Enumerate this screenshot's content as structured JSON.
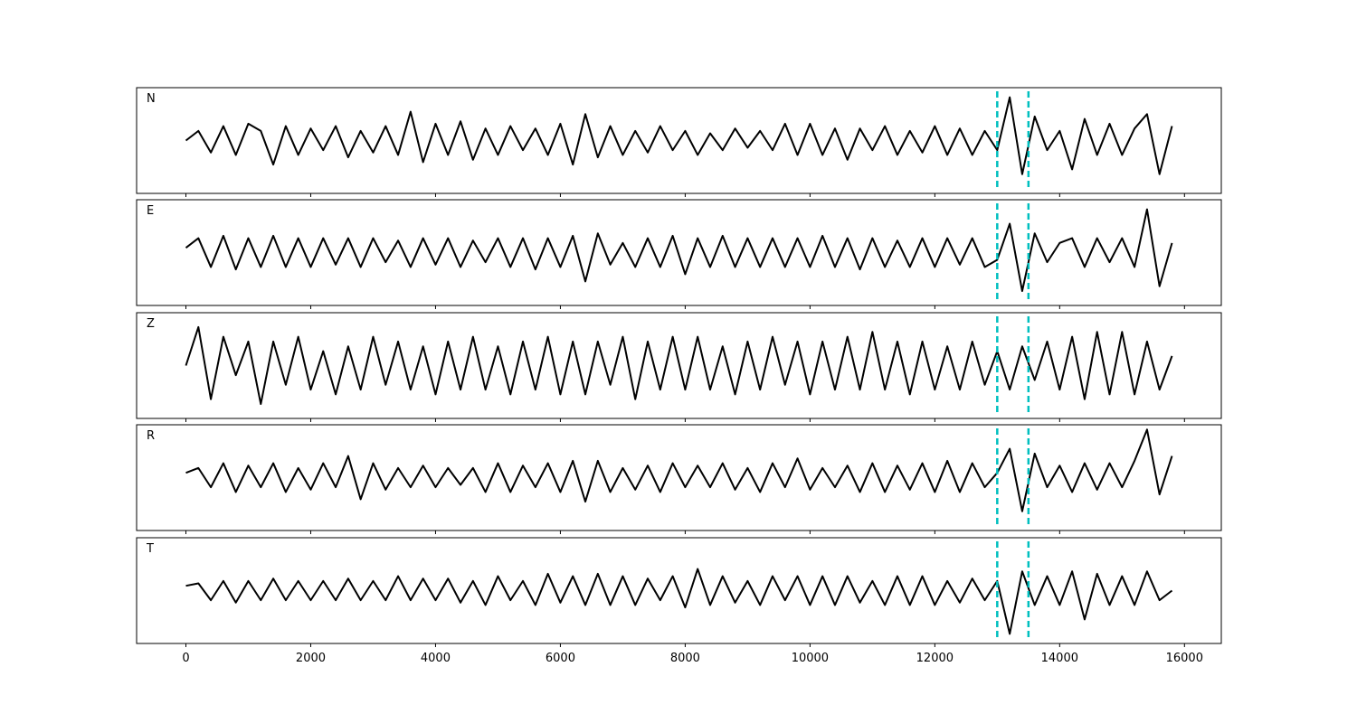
{
  "chart_data": [
    {
      "type": "line",
      "title": "N",
      "color": "#000000",
      "vlines": [
        13000,
        13500
      ],
      "vline_color": "#00bfbf",
      "xlim": [
        -790,
        16590
      ],
      "ylim": [
        -1.1,
        1.1
      ],
      "xticks": [
        0,
        2000,
        4000,
        6000,
        8000,
        10000,
        12000,
        14000,
        16000
      ],
      "x": [
        0,
        200,
        400,
        600,
        800,
        1000,
        1200,
        1400,
        1600,
        1800,
        2000,
        2200,
        2400,
        2600,
        2800,
        3000,
        3200,
        3400,
        3600,
        3800,
        4000,
        4200,
        4400,
        4600,
        4800,
        5000,
        5200,
        5400,
        5600,
        5800,
        6000,
        6200,
        6400,
        6600,
        6800,
        7000,
        7200,
        7400,
        7600,
        7800,
        8000,
        8200,
        8400,
        8600,
        8800,
        9000,
        9200,
        9400,
        9600,
        9800,
        10000,
        10200,
        10400,
        10600,
        10800,
        11000,
        11200,
        11400,
        11600,
        11800,
        12000,
        12200,
        12400,
        12600,
        12800,
        13000,
        13200,
        13400,
        13600,
        13800,
        14000,
        14200,
        14400,
        14600,
        14800,
        15000,
        15200,
        15400,
        15600,
        15800
      ],
      "values": [
        0,
        0.2,
        -0.25,
        0.3,
        -0.3,
        0.35,
        0.2,
        -0.5,
        0.3,
        -0.3,
        0.25,
        -0.2,
        0.3,
        -0.35,
        0.2,
        -0.25,
        0.3,
        -0.3,
        0.6,
        -0.45,
        0.35,
        -0.3,
        0.4,
        -0.4,
        0.25,
        -0.3,
        0.3,
        -0.2,
        0.25,
        -0.3,
        0.35,
        -0.5,
        0.55,
        -0.35,
        0.3,
        -0.3,
        0.2,
        -0.25,
        0.3,
        -0.2,
        0.2,
        -0.3,
        0.15,
        -0.2,
        0.25,
        -0.15,
        0.2,
        -0.2,
        0.35,
        -0.3,
        0.35,
        -0.3,
        0.25,
        -0.4,
        0.25,
        -0.2,
        0.3,
        -0.3,
        0.2,
        -0.25,
        0.3,
        -0.3,
        0.25,
        -0.3,
        0.2,
        -0.2,
        0.9,
        -0.7,
        0.5,
        -0.2,
        0.2,
        -0.6,
        0.45,
        -0.3,
        0.35,
        -0.3,
        0.25,
        0.55,
        -0.7,
        0.3
      ]
    },
    {
      "type": "line",
      "title": "E",
      "color": "#000000",
      "vlines": [
        13000,
        13500
      ],
      "vline_color": "#00bfbf",
      "xlim": [
        -790,
        16590
      ],
      "ylim": [
        -1.1,
        1.1
      ],
      "xticks": [
        0,
        2000,
        4000,
        6000,
        8000,
        10000,
        12000,
        14000,
        16000
      ],
      "x": [
        0,
        200,
        400,
        600,
        800,
        1000,
        1200,
        1400,
        1600,
        1800,
        2000,
        2200,
        2400,
        2600,
        2800,
        3000,
        3200,
        3400,
        3600,
        3800,
        4000,
        4200,
        4400,
        4600,
        4800,
        5000,
        5200,
        5400,
        5600,
        5800,
        6000,
        6200,
        6400,
        6600,
        6800,
        7000,
        7200,
        7400,
        7600,
        7800,
        8000,
        8200,
        8400,
        8600,
        8800,
        9000,
        9200,
        9400,
        9600,
        9800,
        10000,
        10200,
        10400,
        10600,
        10800,
        11000,
        11200,
        11400,
        11600,
        11800,
        12000,
        12200,
        12400,
        12600,
        12800,
        13000,
        13200,
        13400,
        13600,
        13800,
        14000,
        14200,
        14400,
        14600,
        14800,
        15000,
        15200,
        15400,
        15600,
        15800
      ],
      "values": [
        0.1,
        0.3,
        -0.3,
        0.35,
        -0.35,
        0.3,
        -0.3,
        0.35,
        -0.3,
        0.3,
        -0.3,
        0.3,
        -0.25,
        0.3,
        -0.3,
        0.3,
        -0.2,
        0.25,
        -0.3,
        0.3,
        -0.25,
        0.3,
        -0.3,
        0.25,
        -0.2,
        0.3,
        -0.3,
        0.3,
        -0.35,
        0.3,
        -0.3,
        0.35,
        -0.6,
        0.4,
        -0.25,
        0.2,
        -0.3,
        0.3,
        -0.3,
        0.35,
        -0.45,
        0.3,
        -0.3,
        0.35,
        -0.3,
        0.3,
        -0.3,
        0.3,
        -0.3,
        0.3,
        -0.3,
        0.35,
        -0.3,
        0.3,
        -0.35,
        0.3,
        -0.3,
        0.25,
        -0.3,
        0.3,
        -0.3,
        0.3,
        -0.25,
        0.3,
        -0.3,
        -0.15,
        0.6,
        -0.8,
        0.4,
        -0.2,
        0.2,
        0.3,
        -0.3,
        0.3,
        -0.2,
        0.3,
        -0.3,
        0.9,
        -0.7,
        0.2
      ]
    },
    {
      "type": "line",
      "title": "Z",
      "color": "#000000",
      "vlines": [
        13000,
        13500
      ],
      "vline_color": "#00bfbf",
      "xlim": [
        -790,
        16590
      ],
      "ylim": [
        -1.1,
        1.1
      ],
      "xticks": [
        0,
        2000,
        4000,
        6000,
        8000,
        10000,
        12000,
        14000,
        16000
      ],
      "x": [
        0,
        200,
        400,
        600,
        800,
        1000,
        1200,
        1400,
        1600,
        1800,
        2000,
        2200,
        2400,
        2600,
        2800,
        3000,
        3200,
        3400,
        3600,
        3800,
        4000,
        4200,
        4400,
        4600,
        4800,
        5000,
        5200,
        5400,
        5600,
        5800,
        6000,
        6200,
        6400,
        6600,
        6800,
        7000,
        7200,
        7400,
        7600,
        7800,
        8000,
        8200,
        8400,
        8600,
        8800,
        9000,
        9200,
        9400,
        9600,
        9800,
        10000,
        10200,
        10400,
        10600,
        10800,
        11000,
        11200,
        11400,
        11600,
        11800,
        12000,
        12200,
        12400,
        12600,
        12800,
        13000,
        13200,
        13400,
        13600,
        13800,
        14000,
        14200,
        14400,
        14600,
        14800,
        15000,
        15200,
        15400,
        15600,
        15800
      ],
      "values": [
        0,
        0.8,
        -0.7,
        0.6,
        -0.2,
        0.5,
        -0.8,
        0.5,
        -0.4,
        0.6,
        -0.5,
        0.3,
        -0.6,
        0.4,
        -0.5,
        0.6,
        -0.4,
        0.5,
        -0.5,
        0.4,
        -0.6,
        0.5,
        -0.5,
        0.6,
        -0.5,
        0.4,
        -0.6,
        0.5,
        -0.5,
        0.6,
        -0.6,
        0.5,
        -0.6,
        0.5,
        -0.4,
        0.6,
        -0.7,
        0.5,
        -0.5,
        0.6,
        -0.5,
        0.6,
        -0.5,
        0.4,
        -0.6,
        0.5,
        -0.5,
        0.6,
        -0.4,
        0.5,
        -0.6,
        0.5,
        -0.5,
        0.6,
        -0.5,
        0.7,
        -0.5,
        0.5,
        -0.6,
        0.5,
        -0.5,
        0.4,
        -0.5,
        0.5,
        -0.4,
        0.3,
        -0.5,
        0.4,
        -0.3,
        0.5,
        -0.5,
        0.6,
        -0.7,
        0.7,
        -0.6,
        0.7,
        -0.6,
        0.5,
        -0.5,
        0.2
      ]
    },
    {
      "type": "line",
      "title": "R",
      "color": "#000000",
      "vlines": [
        13000,
        13500
      ],
      "vline_color": "#00bfbf",
      "xlim": [
        -790,
        16590
      ],
      "ylim": [
        -1.1,
        1.1
      ],
      "xticks": [
        0,
        2000,
        4000,
        6000,
        8000,
        10000,
        12000,
        14000,
        16000
      ],
      "x": [
        0,
        200,
        400,
        600,
        800,
        1000,
        1200,
        1400,
        1600,
        1800,
        2000,
        2200,
        2400,
        2600,
        2800,
        3000,
        3200,
        3400,
        3600,
        3800,
        4000,
        4200,
        4400,
        4600,
        4800,
        5000,
        5200,
        5400,
        5600,
        5800,
        6000,
        6200,
        6400,
        6600,
        6800,
        7000,
        7200,
        7400,
        7600,
        7800,
        8000,
        8200,
        8400,
        8600,
        8800,
        9000,
        9200,
        9400,
        9600,
        9800,
        10000,
        10200,
        10400,
        10600,
        10800,
        11000,
        11200,
        11400,
        11600,
        11800,
        12000,
        12200,
        12400,
        12600,
        12800,
        13000,
        13200,
        13400,
        13600,
        13800,
        14000,
        14200,
        14400,
        14600,
        14800,
        15000,
        15200,
        15400,
        15600,
        15800
      ],
      "values": [
        0.1,
        0.2,
        -0.2,
        0.3,
        -0.3,
        0.25,
        -0.2,
        0.3,
        -0.3,
        0.2,
        -0.25,
        0.3,
        -0.2,
        0.45,
        -0.45,
        0.3,
        -0.25,
        0.2,
        -0.2,
        0.25,
        -0.2,
        0.2,
        -0.15,
        0.2,
        -0.3,
        0.3,
        -0.3,
        0.25,
        -0.2,
        0.3,
        -0.3,
        0.35,
        -0.5,
        0.35,
        -0.3,
        0.2,
        -0.25,
        0.25,
        -0.3,
        0.3,
        -0.2,
        0.25,
        -0.2,
        0.3,
        -0.25,
        0.2,
        -0.3,
        0.3,
        -0.2,
        0.4,
        -0.25,
        0.2,
        -0.2,
        0.25,
        -0.3,
        0.3,
        -0.3,
        0.25,
        -0.25,
        0.3,
        -0.3,
        0.35,
        -0.3,
        0.3,
        -0.2,
        0.1,
        0.6,
        -0.7,
        0.5,
        -0.2,
        0.25,
        -0.3,
        0.3,
        -0.25,
        0.3,
        -0.2,
        0.35,
        1.0,
        -0.35,
        0.45
      ]
    },
    {
      "type": "line",
      "title": "T",
      "color": "#000000",
      "vlines": [
        13000,
        13500
      ],
      "vline_color": "#00bfbf",
      "xlim": [
        -790,
        16590
      ],
      "ylim": [
        -1.1,
        1.1
      ],
      "xticks": [
        0,
        2000,
        4000,
        6000,
        8000,
        10000,
        12000,
        14000,
        16000
      ],
      "x": [
        0,
        200,
        400,
        600,
        800,
        1000,
        1200,
        1400,
        1600,
        1800,
        2000,
        2200,
        2400,
        2600,
        2800,
        3000,
        3200,
        3400,
        3600,
        3800,
        4000,
        4200,
        4400,
        4600,
        4800,
        5000,
        5200,
        5400,
        5600,
        5800,
        6000,
        6200,
        6400,
        6600,
        6800,
        7000,
        7200,
        7400,
        7600,
        7800,
        8000,
        8200,
        8400,
        8600,
        8800,
        9000,
        9200,
        9400,
        9600,
        9800,
        10000,
        10200,
        10400,
        10600,
        10800,
        11000,
        11200,
        11400,
        11600,
        11800,
        12000,
        12200,
        12400,
        12600,
        12800,
        13000,
        13200,
        13400,
        13600,
        13800,
        14000,
        14200,
        14400,
        14600,
        14800,
        15000,
        15200,
        15400,
        15600,
        15800
      ],
      "values": [
        0.1,
        0.15,
        -0.2,
        0.2,
        -0.25,
        0.2,
        -0.2,
        0.25,
        -0.2,
        0.2,
        -0.2,
        0.2,
        -0.2,
        0.25,
        -0.2,
        0.2,
        -0.2,
        0.3,
        -0.2,
        0.25,
        -0.2,
        0.25,
        -0.25,
        0.2,
        -0.3,
        0.3,
        -0.2,
        0.2,
        -0.3,
        0.35,
        -0.25,
        0.3,
        -0.3,
        0.35,
        -0.3,
        0.3,
        -0.3,
        0.25,
        -0.2,
        0.3,
        -0.35,
        0.45,
        -0.3,
        0.3,
        -0.25,
        0.2,
        -0.3,
        0.3,
        -0.2,
        0.3,
        -0.3,
        0.3,
        -0.3,
        0.3,
        -0.25,
        0.2,
        -0.3,
        0.3,
        -0.3,
        0.3,
        -0.3,
        0.2,
        -0.25,
        0.25,
        -0.2,
        0.2,
        -0.9,
        0.4,
        -0.3,
        0.3,
        -0.3,
        0.4,
        -0.6,
        0.35,
        -0.3,
        0.3,
        -0.3,
        0.4,
        -0.2,
        0.0
      ]
    }
  ]
}
